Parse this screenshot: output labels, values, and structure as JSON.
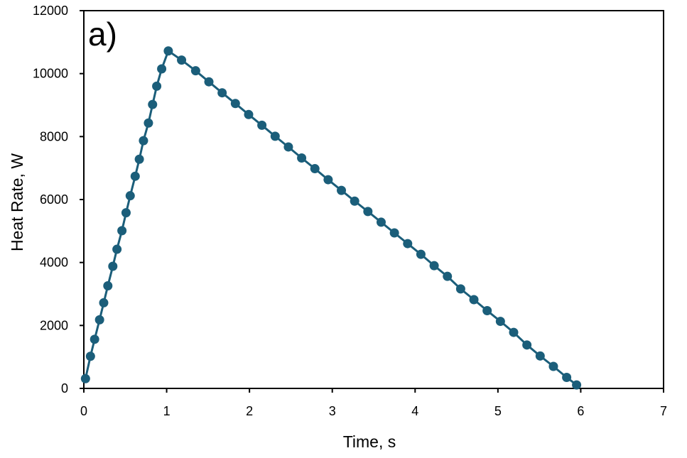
{
  "chart_data": {
    "type": "line",
    "panel_label": "a)",
    "xlabel": "Time, s",
    "ylabel": "Heat Rate, W",
    "xlim": [
      0,
      7
    ],
    "ylim": [
      0,
      12000
    ],
    "xticks": [
      "0",
      "1",
      "2",
      "3",
      "4",
      "5",
      "6",
      "7"
    ],
    "yticks": [
      "0",
      "2000",
      "4000",
      "6000",
      "8000",
      "10000",
      "12000"
    ],
    "grid": false,
    "legend": "none",
    "line_color": "#1b5e7a",
    "marker_color": "#1b5e7a",
    "series": [
      {
        "x": [
          0.02,
          0.08,
          0.13,
          0.19,
          0.24,
          0.29,
          0.35,
          0.4,
          0.46,
          0.51,
          0.56,
          0.62,
          0.67,
          0.72,
          0.78,
          0.83,
          0.88,
          0.94,
          1.02,
          1.18,
          1.35,
          1.51,
          1.67,
          1.83,
          1.99,
          2.15,
          2.31,
          2.47,
          2.63,
          2.79,
          2.95,
          3.11,
          3.27,
          3.43,
          3.59,
          3.75,
          3.91,
          4.07,
          4.23,
          4.39,
          4.55,
          4.71,
          4.87,
          5.03,
          5.19,
          5.35,
          5.51,
          5.67,
          5.83,
          5.95
        ],
        "y": [
          310,
          1020,
          1560,
          2180,
          2720,
          3260,
          3880,
          4420,
          5010,
          5580,
          6120,
          6740,
          7280,
          7870,
          8430,
          9020,
          9600,
          10150,
          10720,
          10430,
          10090,
          9740,
          9390,
          9050,
          8700,
          8360,
          8010,
          7670,
          7320,
          6980,
          6630,
          6290,
          5950,
          5620,
          5280,
          4940,
          4600,
          4260,
          3900,
          3560,
          3160,
          2820,
          2470,
          2130,
          1780,
          1380,
          1030,
          700,
          350,
          110
        ]
      }
    ]
  }
}
